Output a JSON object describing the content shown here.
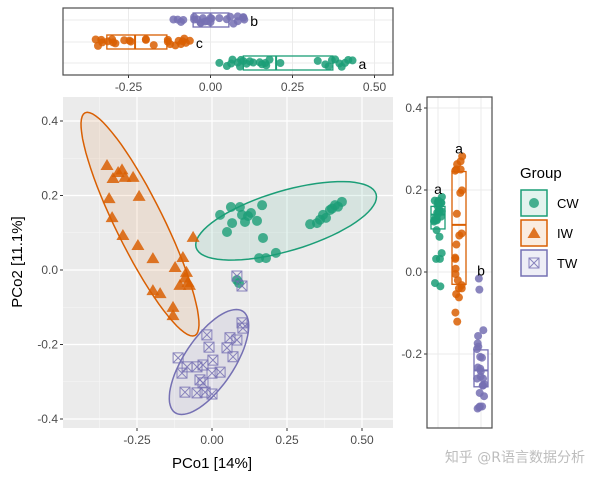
{
  "chart_data": {
    "type": "scatter",
    "xlabel": "PCo1 [14%]",
    "ylabel": "PCo2 [11.1%]",
    "xlim": [
      -0.497,
      0.603
    ],
    "ylim": [
      -0.424,
      0.464
    ],
    "x_ticks": [
      "-0.25",
      "0.00",
      "0.25",
      "0.50"
    ],
    "x_tick_values": [
      -0.25,
      0,
      0.25,
      0.5
    ],
    "y_ticks": [
      "-0.4",
      "-0.2",
      "0.0",
      "0.2",
      "0.4"
    ],
    "y_tick_values": [
      -0.4,
      -0.2,
      0,
      0.2,
      0.4
    ],
    "right_y_ticks": [
      "-0.2",
      "0.0",
      "0.2",
      "0.4"
    ],
    "right_y_tick_values": [
      -0.2,
      0,
      0.2,
      0.4
    ],
    "grid": true,
    "legend": {
      "title": "Group",
      "position": "right",
      "entries": [
        "CW",
        "IW",
        "TW"
      ]
    },
    "series": [
      {
        "name": "CW",
        "color": "#1b9e77",
        "shape": "circle",
        "points": [
          [
            0.027,
            0.148
          ],
          [
            0.063,
            0.169
          ],
          [
            0.093,
            0.169
          ],
          [
            0.1,
            0.148
          ],
          [
            0.13,
            0.153
          ],
          [
            0.167,
            0.174
          ],
          [
            0.067,
            0.126
          ],
          [
            0.05,
            0.102
          ],
          [
            0.11,
            0.129
          ],
          [
            0.15,
            0.132
          ],
          [
            0.12,
            0.145
          ],
          [
            0.17,
            0.086
          ],
          [
            0.157,
            0.032
          ],
          [
            0.18,
            0.032
          ],
          [
            0.213,
            0.046
          ],
          [
            0.327,
            0.123
          ],
          [
            0.35,
            0.126
          ],
          [
            0.37,
            0.148
          ],
          [
            0.393,
            0.161
          ],
          [
            0.41,
            0.174
          ],
          [
            0.433,
            0.183
          ],
          [
            0.38,
            0.14
          ],
          [
            0.36,
            0.135
          ],
          [
            0.4,
            0.165
          ],
          [
            0.42,
            0.17
          ],
          [
            0.083,
            -0.027
          ],
          [
            0.09,
            -0.035
          ]
        ],
        "ellipse": {
          "center": [
            0.247,
            0.132
          ],
          "axis1": [
            0.3,
            0.072
          ],
          "axis2": [
            -0.029,
            0.077
          ]
        },
        "x_box": {
          "q1": 0.1,
          "median": 0.2,
          "q3": 0.373,
          "letter": "a"
        },
        "y_box": {
          "q1": 0.105,
          "median": 0.14,
          "q3": 0.16,
          "letter": "a"
        }
      },
      {
        "name": "IW",
        "color": "#d95f02",
        "shape": "triangle",
        "points": [
          [
            -0.35,
            0.282
          ],
          [
            -0.313,
            0.263
          ],
          [
            -0.33,
            0.247
          ],
          [
            -0.29,
            0.25
          ],
          [
            -0.263,
            0.25
          ],
          [
            -0.3,
            0.27
          ],
          [
            -0.343,
            0.193
          ],
          [
            -0.243,
            0.199
          ],
          [
            -0.333,
            0.142
          ],
          [
            -0.297,
            0.094
          ],
          [
            -0.247,
            0.067
          ],
          [
            -0.197,
            0.032
          ],
          [
            -0.123,
            0.008
          ],
          [
            -0.097,
            0.035
          ],
          [
            -0.063,
            0.089
          ],
          [
            -0.08,
            -0.032
          ],
          [
            -0.107,
            -0.04
          ],
          [
            -0.197,
            -0.054
          ],
          [
            -0.173,
            -0.062
          ],
          [
            -0.13,
            -0.099
          ],
          [
            -0.13,
            -0.121
          ],
          [
            -0.075,
            -0.04
          ],
          [
            -0.085,
            -0.005
          ],
          [
            -0.09,
            -0.02
          ]
        ],
        "ellipse": {
          "center": [
            -0.24,
            0.123
          ],
          "axis1": [
            0.183,
            -0.299
          ],
          "axis2": [
            0.072,
            0.028
          ]
        },
        "x_box": {
          "q1": -0.316,
          "median": -0.23,
          "q3": -0.133,
          "letter": "c"
        },
        "y_box": {
          "q1": -0.03,
          "median": 0.115,
          "q3": 0.245,
          "letter": "a"
        }
      },
      {
        "name": "TW",
        "color": "#7570b3",
        "shape": "square-cross",
        "points": [
          [
            0.083,
            -0.016
          ],
          [
            0.1,
            -0.043
          ],
          [
            0.1,
            -0.142
          ],
          [
            0.103,
            -0.156
          ],
          [
            0.06,
            -0.182
          ],
          [
            0.083,
            -0.188
          ],
          [
            0.05,
            -0.209
          ],
          [
            -0.017,
            -0.174
          ],
          [
            -0.01,
            -0.207
          ],
          [
            0.07,
            -0.233
          ],
          [
            0.003,
            -0.242
          ],
          [
            -0.113,
            -0.236
          ],
          [
            -0.083,
            -0.26
          ],
          [
            -0.05,
            -0.26
          ],
          [
            -0.03,
            -0.255
          ],
          [
            -0.1,
            -0.277
          ],
          [
            -0.04,
            -0.295
          ],
          [
            0.027,
            -0.274
          ],
          [
            0,
            -0.277
          ],
          [
            -0.09,
            -0.328
          ],
          [
            -0.05,
            -0.33
          ],
          [
            -0.023,
            -0.328
          ],
          [
            0,
            -0.333
          ],
          [
            -0.03,
            -0.303
          ]
        ],
        "ellipse": {
          "center": [
            -0.01,
            -0.247
          ],
          "axis1": [
            0.113,
            0.136
          ],
          "axis2": [
            0.069,
            -0.037
          ]
        },
        "x_box": {
          "q1": -0.053,
          "median": 0.0,
          "q3": 0.056,
          "letter": "b"
        },
        "y_box": {
          "q1": -0.28,
          "median": -0.24,
          "q3": -0.19,
          "letter": "b"
        }
      }
    ]
  },
  "watermark": "知乎 @R语言数据分析"
}
